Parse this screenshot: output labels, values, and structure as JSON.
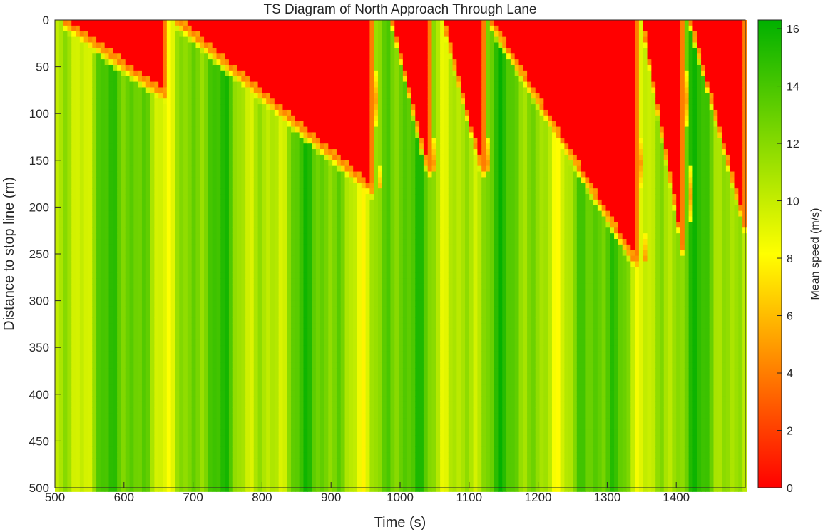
{
  "chart_data": {
    "type": "heatmap",
    "title": "TS Diagram of North Approach Through Lane",
    "xlabel": "Time (s)",
    "ylabel": "Distance to stop line (m)",
    "colorbar_label": "Mean speed (m/s)",
    "xlim": [
      500,
      1500
    ],
    "ylim": [
      0,
      500
    ],
    "y_reversed": true,
    "clim": [
      0,
      16.3
    ],
    "x_ticks": [
      500,
      600,
      700,
      800,
      900,
      1000,
      1100,
      1200,
      1300,
      1400
    ],
    "y_ticks": [
      0,
      50,
      100,
      150,
      200,
      250,
      300,
      350,
      400,
      450,
      500
    ],
    "colorbar_ticks": [
      0,
      2,
      4,
      6,
      8,
      10,
      12,
      14,
      16
    ],
    "colormap": [
      "#ff0000",
      "#ffff00",
      "#00b000"
    ],
    "grid": false,
    "free_flow_speed": 12,
    "stopped_speed": 0,
    "queues": [
      {
        "red_start": 510,
        "green_start": 658,
        "max_queue": 80
      },
      {
        "red_start": 675,
        "green_start": 960,
        "max_queue": 182
      },
      {
        "red_start": 988,
        "green_start": 1040,
        "max_queue": 160
      },
      {
        "red_start": 1062,
        "green_start": 1118,
        "max_queue": 160
      },
      {
        "red_start": 1130,
        "green_start": 1340,
        "max_queue": 258
      },
      {
        "red_start": 1350,
        "green_start": 1410,
        "max_queue": 248
      },
      {
        "red_start": 1420,
        "green_start": 1500,
        "max_queue": 222
      }
    ]
  }
}
